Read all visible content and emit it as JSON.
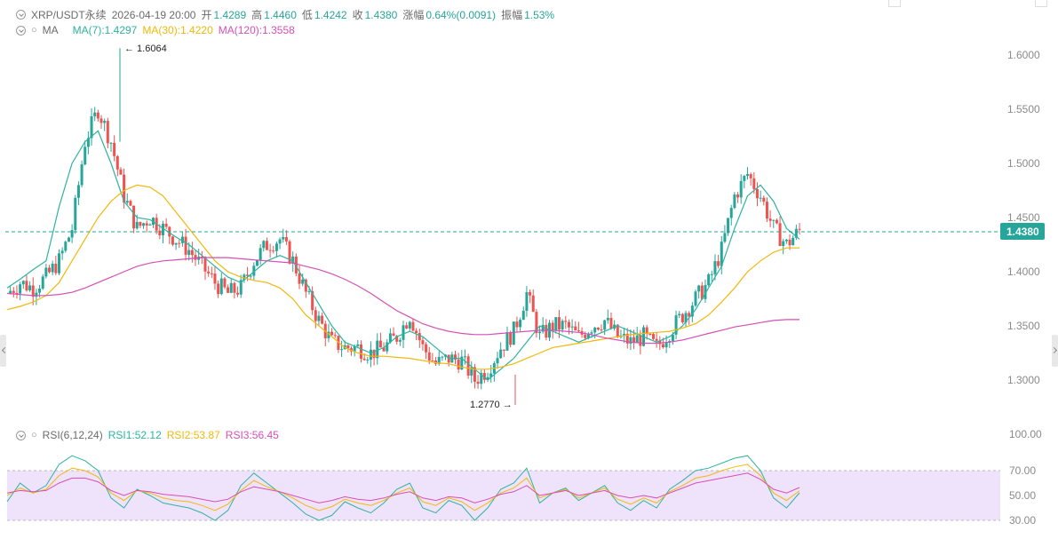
{
  "header": {
    "symbol": "XRP/USDT永续",
    "datetime": "2026-04-19 20:00",
    "open_label": "开",
    "open": "1.4289",
    "high_label": "高",
    "high": "1.4460",
    "low_label": "低",
    "low": "1.4242",
    "close_label": "收",
    "close": "1.4380",
    "change_label": "涨幅",
    "change": "0.64%(0.0091)",
    "amp_label": "振幅",
    "amp": "1.53%"
  },
  "ma_legend": {
    "name": "MA",
    "ma7": "MA(7):1.4297",
    "ma30": "MA(30):1.4220",
    "ma120": "MA(120):1.3558"
  },
  "rsi_legend": {
    "name": "RSI(6,12,24)",
    "rsi1": "RSI1:52.12",
    "rsi2": "RSI2:53.87",
    "rsi3": "RSI3:56.45"
  },
  "annotations": {
    "high_marker": "← 1.6064",
    "low_marker": "1.2770 →",
    "last_price": "1.4380"
  },
  "colors": {
    "up": "#26a69a",
    "down": "#ef5350",
    "ma7": "#2db3a0",
    "ma30": "#f0b90b",
    "ma120": "#d64fb5",
    "rsi_band": "#efe3fb",
    "last_price_bg": "#26a69a",
    "axis_text": "#8a8a8a"
  },
  "chart_data": [
    {
      "type": "candlestick",
      "title": "XRP/USDT永续",
      "y_ticks": [
        "1.6000",
        "1.5500",
        "1.5000",
        "1.4500",
        "1.4000",
        "1.3500",
        "1.3000"
      ],
      "ylim": [
        1.27,
        1.62
      ],
      "last_price": 1.438,
      "period_high": 1.6064,
      "period_low": 1.277,
      "series": [
        {
          "name": "MA(7)",
          "values": [
            1.385,
            1.393,
            1.402,
            1.41,
            1.46,
            1.5,
            1.52,
            1.53,
            1.5,
            1.465,
            1.45,
            1.448,
            1.44,
            1.432,
            1.425,
            1.415,
            1.405,
            1.395,
            1.39,
            1.4,
            1.41,
            1.415,
            1.41,
            1.39,
            1.37,
            1.35,
            1.335,
            1.33,
            1.325,
            1.33,
            1.34,
            1.345,
            1.34,
            1.33,
            1.32,
            1.32,
            1.31,
            1.3,
            1.31,
            1.32,
            1.335,
            1.35,
            1.345,
            1.34,
            1.335,
            1.34,
            1.345,
            1.35,
            1.345,
            1.34,
            1.335,
            1.34,
            1.35,
            1.365,
            1.385,
            1.405,
            1.44,
            1.47,
            1.48,
            1.465,
            1.44,
            1.43
          ]
        },
        {
          "name": "MA(30)",
          "values": [
            1.365,
            1.368,
            1.372,
            1.378,
            1.39,
            1.41,
            1.43,
            1.45,
            1.465,
            1.475,
            1.48,
            1.478,
            1.47,
            1.455,
            1.44,
            1.425,
            1.41,
            1.4,
            1.395,
            1.392,
            1.39,
            1.385,
            1.375,
            1.36,
            1.35,
            1.34,
            1.33,
            1.325,
            1.322,
            1.322,
            1.321,
            1.32,
            1.318,
            1.316,
            1.315,
            1.312,
            1.31,
            1.31,
            1.312,
            1.315,
            1.32,
            1.325,
            1.33,
            1.332,
            1.334,
            1.336,
            1.338,
            1.34,
            1.342,
            1.343,
            1.344,
            1.345,
            1.348,
            1.352,
            1.36,
            1.372,
            1.385,
            1.4,
            1.41,
            1.418,
            1.422,
            1.422
          ]
        },
        {
          "name": "MA(120)",
          "values": [
            1.38,
            1.379,
            1.378,
            1.378,
            1.379,
            1.381,
            1.385,
            1.39,
            1.395,
            1.4,
            1.405,
            1.408,
            1.41,
            1.411,
            1.412,
            1.413,
            1.413,
            1.413,
            1.412,
            1.411,
            1.41,
            1.409,
            1.408,
            1.405,
            1.402,
            1.398,
            1.393,
            1.387,
            1.38,
            1.372,
            1.364,
            1.358,
            1.352,
            1.348,
            1.345,
            1.343,
            1.342,
            1.342,
            1.343,
            1.344,
            1.345,
            1.346,
            1.346,
            1.345,
            1.344,
            1.342,
            1.339,
            1.337,
            1.335,
            1.334,
            1.334,
            1.335,
            1.337,
            1.34,
            1.343,
            1.346,
            1.349,
            1.351,
            1.353,
            1.355,
            1.3558,
            1.3558
          ]
        }
      ],
      "candles_close": [
        1.38,
        1.39,
        1.385,
        1.395,
        1.41,
        1.44,
        1.52,
        1.55,
        1.52,
        1.47,
        1.44,
        1.45,
        1.44,
        1.43,
        1.42,
        1.405,
        1.39,
        1.38,
        1.385,
        1.41,
        1.425,
        1.43,
        1.41,
        1.38,
        1.355,
        1.335,
        1.33,
        1.33,
        1.325,
        1.33,
        1.34,
        1.36,
        1.33,
        1.315,
        1.32,
        1.318,
        1.3,
        1.31,
        1.33,
        1.345,
        1.38,
        1.34,
        1.35,
        1.35,
        1.34,
        1.35,
        1.355,
        1.34,
        1.335,
        1.34,
        1.33,
        1.345,
        1.36,
        1.375,
        1.39,
        1.42,
        1.47,
        1.49,
        1.47,
        1.44,
        1.425,
        1.438
      ]
    },
    {
      "type": "line",
      "title": "RSI(6,12,24)",
      "y_ticks": [
        "100.00",
        "70.00",
        "50.00",
        "30.00"
      ],
      "ylim": [
        0,
        100
      ],
      "band": [
        30,
        70
      ],
      "series": [
        {
          "name": "RSI1",
          "values": [
            45,
            60,
            52,
            58,
            75,
            82,
            78,
            70,
            48,
            40,
            55,
            50,
            44,
            42,
            40,
            36,
            30,
            38,
            58,
            68,
            60,
            52,
            44,
            35,
            30,
            34,
            45,
            40,
            36,
            44,
            55,
            60,
            40,
            36,
            46,
            42,
            30,
            40,
            55,
            60,
            72,
            44,
            52,
            56,
            46,
            52,
            58,
            44,
            38,
            46,
            40,
            55,
            62,
            70,
            72,
            76,
            80,
            82,
            70,
            48,
            40,
            52.12
          ]
        },
        {
          "name": "RSI2",
          "values": [
            50,
            56,
            52,
            55,
            66,
            72,
            70,
            65,
            52,
            46,
            54,
            52,
            48,
            46,
            45,
            42,
            38,
            43,
            54,
            62,
            57,
            53,
            48,
            42,
            38,
            41,
            47,
            44,
            42,
            46,
            52,
            56,
            45,
            42,
            48,
            45,
            38,
            44,
            52,
            56,
            64,
            48,
            52,
            55,
            48,
            52,
            56,
            47,
            43,
            48,
            44,
            53,
            58,
            64,
            66,
            70,
            73,
            75,
            66,
            52,
            46,
            53.87
          ]
        },
        {
          "name": "RSI3",
          "values": [
            52,
            54,
            53,
            54,
            60,
            64,
            64,
            61,
            54,
            50,
            54,
            53,
            51,
            50,
            49,
            47,
            45,
            47,
            53,
            57,
            55,
            53,
            50,
            47,
            44,
            46,
            49,
            47,
            46,
            48,
            51,
            53,
            48,
            46,
            49,
            48,
            44,
            47,
            51,
            53,
            58,
            50,
            52,
            54,
            50,
            52,
            54,
            50,
            48,
            50,
            48,
            52,
            56,
            60,
            62,
            64,
            66,
            68,
            63,
            55,
            52,
            56.45
          ]
        }
      ]
    }
  ]
}
